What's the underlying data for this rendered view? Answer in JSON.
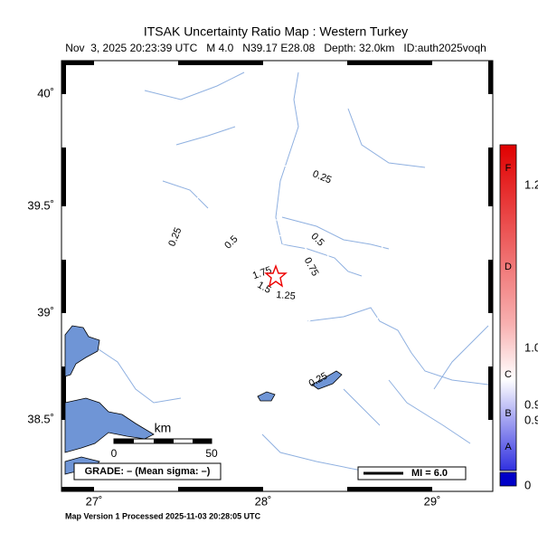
{
  "header": {
    "title": "ITSAK Uncertainty Ratio Map : Western Turkey",
    "subtitle": "Nov  3, 2025 20:23:39 UTC   M 4.0   N39.17 E28.08   Depth: 32.0km   ID:auth2025voqh"
  },
  "axes": {
    "lat_labels": [
      "40˚",
      "39.5˚",
      "39˚",
      "38.5˚"
    ],
    "lon_labels": [
      "27˚",
      "28˚",
      "29˚"
    ]
  },
  "contour_labels": [
    "0.25",
    "0.25",
    "0.5",
    "0.5",
    "0.75",
    "1.75",
    "1.5",
    "1.25",
    "0.25"
  ],
  "scale": {
    "title": "km",
    "labels": [
      "0",
      "50"
    ]
  },
  "grade": "GRADE: – (Mean sigma: –)",
  "legend": "MI = 6.0",
  "colorbar": {
    "grades": [
      "F",
      "D",
      "C",
      "B",
      "A"
    ],
    "labels": [
      "1.2",
      "1.0",
      "0.9",
      "0.9",
      "0"
    ]
  },
  "footer": "Map Version 1 Processed 2025-11-03 20:28:05 UTC"
}
